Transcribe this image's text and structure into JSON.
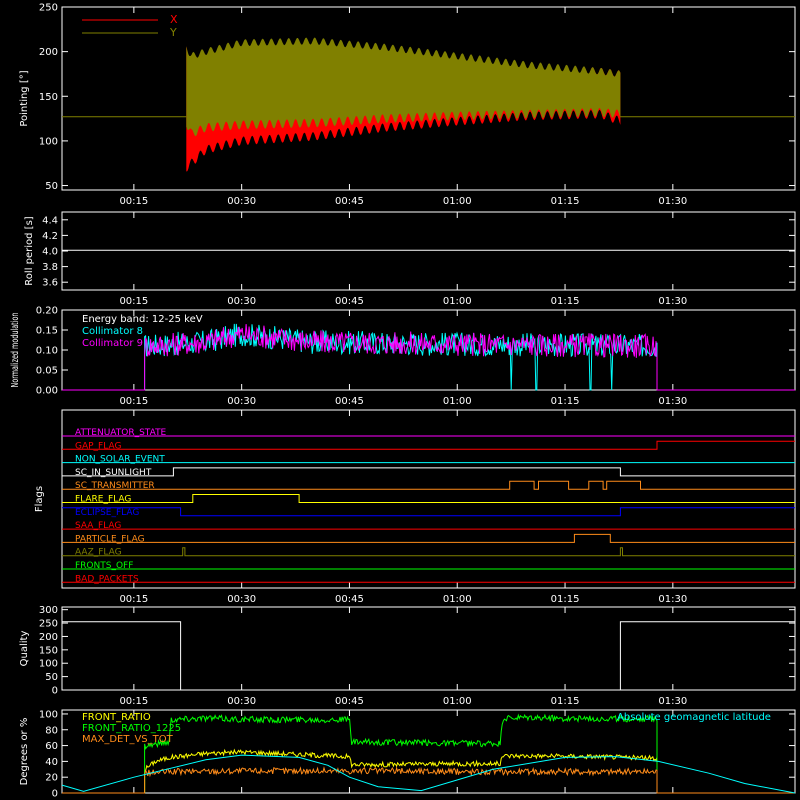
{
  "x_ticks": [
    "00:15",
    "00:30",
    "00:45",
    "01:00",
    "01:15",
    "01:30"
  ],
  "x_tick_minutes": [
    15,
    30,
    45,
    60,
    75,
    90
  ],
  "x_range_minutes": [
    5,
    107
  ],
  "colors": {
    "background": "#000000",
    "axis": "#ffffff",
    "red": "#ff0000",
    "olive": "#808000",
    "cyan": "#00ffff",
    "magenta": "#ff00ff",
    "yellow": "#ffff00",
    "green": "#00ff00",
    "orange": "#ff8c1a",
    "blue": "#0000ff"
  },
  "chart_data": [
    {
      "type": "area",
      "id": "pointing",
      "ylabel": "Pointing [°]",
      "ylim": [
        45,
        250
      ],
      "yticks": [
        50,
        100,
        150,
        200,
        250
      ],
      "legend": [
        {
          "name": "X",
          "color": "#ff0000"
        },
        {
          "name": "Y",
          "color": "#808000"
        }
      ],
      "baseline": 127,
      "active_range_minutes": [
        22.3,
        82.7
      ],
      "series": [
        {
          "name": "X",
          "envelope": {
            "t": [
              22.3,
              23,
              25,
              30,
              40,
              50,
              60,
              70,
              80,
              82.7
            ],
            "low": [
              70,
              75,
              90,
              100,
              105,
              115,
              122,
              128,
              130,
              122
            ],
            "high": [
              205,
              178,
              182,
              190,
              195,
              192,
              188,
              183,
              178,
              175
            ]
          }
        },
        {
          "name": "Y",
          "envelope": {
            "t": [
              22.3,
              23,
              25,
              30,
              40,
              50,
              60,
              70,
              80,
              82.7
            ],
            "low": [
              120,
              108,
              115,
              118,
              120,
              125,
              128,
              130,
              132,
              130
            ],
            "high": [
              205,
              195,
              200,
              210,
              212,
              205,
              195,
              185,
              178,
              175
            ]
          }
        }
      ]
    },
    {
      "type": "line",
      "id": "roll",
      "ylabel": "Roll period [s]",
      "ylim": [
        3.5,
        4.5
      ],
      "yticks": [
        3.6,
        3.8,
        4.0,
        4.2,
        4.4
      ],
      "series": [
        {
          "name": "",
          "x": [
            5,
            107
          ],
          "y": [
            4.01,
            4.01
          ]
        }
      ]
    },
    {
      "type": "line",
      "id": "modulation",
      "ylabel": "Normalized modulation",
      "ylim": [
        0,
        0.2
      ],
      "yticks": [
        0.0,
        0.05,
        0.1,
        0.15,
        0.2
      ],
      "annotation": "Energy band: 12-25 keV",
      "legend": [
        {
          "name": "Collimator 8",
          "color": "#00ffff"
        },
        {
          "name": "Collimator 9",
          "color": "#ff00ff"
        }
      ],
      "active_range_minutes": [
        16.5,
        87.8
      ],
      "dropouts_minutes": [
        67.5,
        71.0,
        78.5,
        81.5
      ],
      "series": [
        {
          "name": "Collimator 8",
          "mean": [
            [
              16.5,
              0.11
            ],
            [
              25,
              0.12
            ],
            [
              30,
              0.14
            ],
            [
              40,
              0.12
            ],
            [
              60,
              0.115
            ],
            [
              87.8,
              0.11
            ]
          ]
        },
        {
          "name": "Collimator 9",
          "mean": [
            [
              16.5,
              0.11
            ],
            [
              25,
              0.12
            ],
            [
              30,
              0.14
            ],
            [
              40,
              0.12
            ],
            [
              60,
              0.115
            ],
            [
              87.8,
              0.11
            ]
          ]
        }
      ]
    },
    {
      "type": "line",
      "id": "flags",
      "ylabel": "Flags",
      "series": [
        {
          "name": "ATTENUATOR_STATE",
          "color": "#ff00ff",
          "segments": [
            [
              5,
              0
            ],
            [
              107,
              0
            ]
          ]
        },
        {
          "name": "GAP_FLAG",
          "color": "#ff0000",
          "segments": [
            [
              5,
              0
            ],
            [
              87.8,
              0
            ],
            [
              87.8,
              1
            ],
            [
              107,
              1
            ]
          ]
        },
        {
          "name": "NON_SOLAR_EVENT",
          "color": "#00ffff",
          "segments": [
            [
              5,
              0
            ],
            [
              107,
              0
            ]
          ]
        },
        {
          "name": "SC_IN_SUNLIGHT",
          "color": "#ffffff",
          "segments": [
            [
              5,
              0
            ],
            [
              20.5,
              0
            ],
            [
              20.5,
              1
            ],
            [
              82.7,
              1
            ],
            [
              82.7,
              0
            ],
            [
              107,
              0
            ]
          ]
        },
        {
          "name": "SC_TRANSMITTER",
          "color": "#ff8c1a",
          "segments": [
            [
              5,
              0
            ],
            [
              67.3,
              0
            ],
            [
              67.3,
              1
            ],
            [
              70.7,
              1
            ],
            [
              70.7,
              0
            ],
            [
              71.3,
              0
            ],
            [
              71.3,
              1
            ],
            [
              75.5,
              1
            ],
            [
              75.5,
              0
            ],
            [
              78.3,
              0
            ],
            [
              78.3,
              1
            ],
            [
              80.3,
              1
            ],
            [
              80.3,
              0
            ],
            [
              80.8,
              0
            ],
            [
              80.8,
              1
            ],
            [
              85.5,
              1
            ],
            [
              85.5,
              0
            ],
            [
              107,
              0
            ]
          ]
        },
        {
          "name": "FLARE_FLAG",
          "color": "#ffff00",
          "segments": [
            [
              5,
              0
            ],
            [
              23.2,
              0
            ],
            [
              23.2,
              1
            ],
            [
              38,
              1
            ],
            [
              38,
              0
            ],
            [
              107,
              0
            ]
          ]
        },
        {
          "name": "ECLIPSE_FLAG",
          "color": "#0000ff",
          "segments": [
            [
              5,
              1
            ],
            [
              21.5,
              1
            ],
            [
              21.5,
              0
            ],
            [
              82.7,
              0
            ],
            [
              82.7,
              1
            ],
            [
              107,
              1
            ]
          ]
        },
        {
          "name": "SAA_FLAG",
          "color": "#ff0000",
          "segments": [
            [
              5,
              0
            ],
            [
              107,
              0
            ]
          ]
        },
        {
          "name": "PARTICLE_FLAG",
          "color": "#ff8c1a",
          "segments": [
            [
              5,
              0
            ],
            [
              76.3,
              0
            ],
            [
              76.3,
              1
            ],
            [
              81.3,
              1
            ],
            [
              81.3,
              0
            ],
            [
              107,
              0
            ]
          ]
        },
        {
          "name": "AAZ_FLAG",
          "color": "#808000",
          "segments": [
            [
              5,
              0
            ],
            [
              21.8,
              0
            ],
            [
              21.8,
              1
            ],
            [
              22.1,
              1
            ],
            [
              22.1,
              0
            ],
            [
              82.7,
              0
            ],
            [
              82.7,
              1
            ],
            [
              83.0,
              1
            ],
            [
              83.0,
              0
            ],
            [
              107,
              0
            ]
          ]
        },
        {
          "name": "FRONTS_OFF",
          "color": "#00ff00",
          "segments": [
            [
              5,
              0
            ],
            [
              107,
              0
            ]
          ]
        },
        {
          "name": "BAD_PACKETS",
          "color": "#ff0000",
          "segments": [
            [
              5,
              0
            ],
            [
              107,
              0
            ]
          ]
        }
      ]
    },
    {
      "type": "line",
      "id": "quality",
      "ylabel": "Quality",
      "ylim": [
        0,
        310
      ],
      "yticks": [
        0,
        50,
        100,
        150,
        200,
        250,
        300
      ],
      "series": [
        {
          "name": "",
          "x": [
            5,
            21.5,
            21.5,
            82.7,
            82.7,
            107
          ],
          "y": [
            255,
            255,
            0,
            0,
            255,
            255
          ]
        }
      ]
    },
    {
      "type": "line",
      "id": "ratios",
      "ylabel": "Degrees or %",
      "ylim": [
        0,
        105
      ],
      "yticks": [
        0,
        20,
        40,
        60,
        80,
        100
      ],
      "legend": [
        {
          "name": "FRONT_RATIO",
          "color": "#ffff00"
        },
        {
          "name": "FRONT_RATIO_1225",
          "color": "#00ff00"
        },
        {
          "name": "MAX_DET_VS_TOT",
          "color": "#ff8c1a"
        },
        {
          "name": "Absolute geomagnetic latitude",
          "color": "#00ffff"
        }
      ],
      "series": [
        {
          "name": "FRONT_RATIO",
          "x": [
            16.5,
            18,
            20,
            25,
            30,
            40,
            45,
            45.3,
            50,
            60,
            66,
            66.3,
            70,
            80,
            87.8
          ],
          "y": [
            30,
            40,
            45,
            50,
            52,
            48,
            46,
            36,
            36,
            37,
            37,
            47,
            47,
            46,
            44
          ]
        },
        {
          "name": "FRONT_RATIO_1225",
          "x": [
            16.5,
            18,
            20,
            20.1,
            25,
            30,
            40,
            45,
            45.3,
            50,
            60,
            66,
            66.3,
            70,
            80,
            87.8
          ],
          "y": [
            60,
            62,
            65,
            93,
            95,
            93,
            93,
            93,
            64,
            64,
            63,
            62,
            94,
            95,
            94,
            94
          ]
        },
        {
          "name": "MAX_DET_VS_TOT",
          "x": [
            16.5,
            20,
            30,
            40,
            50,
            60,
            70,
            80,
            87.8
          ],
          "y": [
            25,
            27,
            28,
            28,
            28,
            27,
            27,
            27,
            27
          ]
        },
        {
          "name": "Absolute geomagnetic latitude",
          "x": [
            5,
            8,
            15,
            25,
            30,
            38,
            42,
            45,
            49,
            55,
            65,
            75,
            82,
            88,
            95,
            100,
            107
          ],
          "y": [
            10,
            2,
            20,
            42,
            48,
            45,
            35,
            20,
            8,
            3,
            30,
            45,
            46,
            40,
            25,
            12,
            0
          ]
        }
      ]
    }
  ]
}
